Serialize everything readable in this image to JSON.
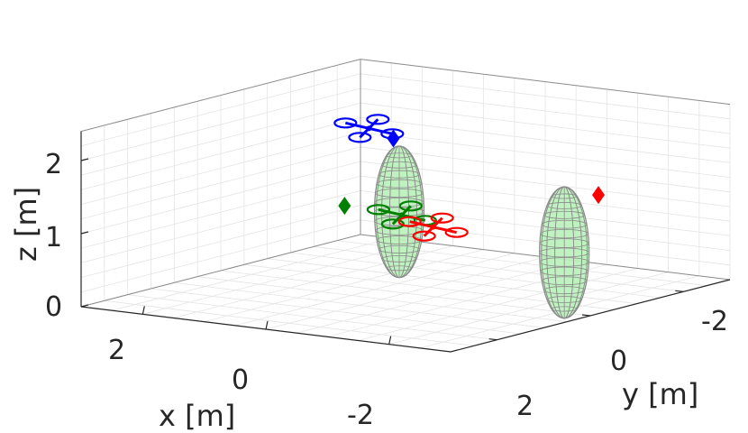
{
  "chart_data": {
    "type": "3d-scatter",
    "title": "",
    "xlabel": "x [m]",
    "ylabel": "y [m]",
    "zlabel": "z [m]",
    "xlim": [
      -3,
      3
    ],
    "ylim": [
      -3,
      3
    ],
    "zlim": [
      0,
      2.4
    ],
    "xticks": [
      "2",
      "0",
      "-2"
    ],
    "yticks": [
      "-2",
      "0",
      "2"
    ],
    "zticks": [
      "0",
      "1",
      "2"
    ],
    "grid": true,
    "obstacles": [
      {
        "name": "ellipsoid-1",
        "center": [
          0.4,
          0.2,
          1.2
        ],
        "radii": [
          0.5,
          0.5,
          1.0
        ],
        "color": "#b9f0b9"
      },
      {
        "name": "ellipsoid-2",
        "center": [
          -0.5,
          2.2,
          0.7
        ],
        "radii": [
          0.5,
          0.5,
          1.0
        ],
        "color": "#b9f0b9"
      }
    ],
    "series": [
      {
        "color": "#0000ff",
        "drone": [
          -0.8,
          -1.2,
          2.0
        ],
        "goal": [
          -0.4,
          -0.5,
          2.0
        ]
      },
      {
        "color": "#008000",
        "drone": [
          1.8,
          1.3,
          1.5
        ],
        "goal": [
          2.5,
          0.9,
          1.7
        ]
      },
      {
        "color": "#ff0000",
        "drone": [
          0.2,
          0.6,
          1.0
        ],
        "goal": [
          -1.1,
          2.3,
          1.4
        ]
      }
    ]
  },
  "colors": {
    "grid": "#e4e4e4",
    "axis": "#262626",
    "box": "#8c8c8c",
    "mesh": "#8a8a8a"
  }
}
